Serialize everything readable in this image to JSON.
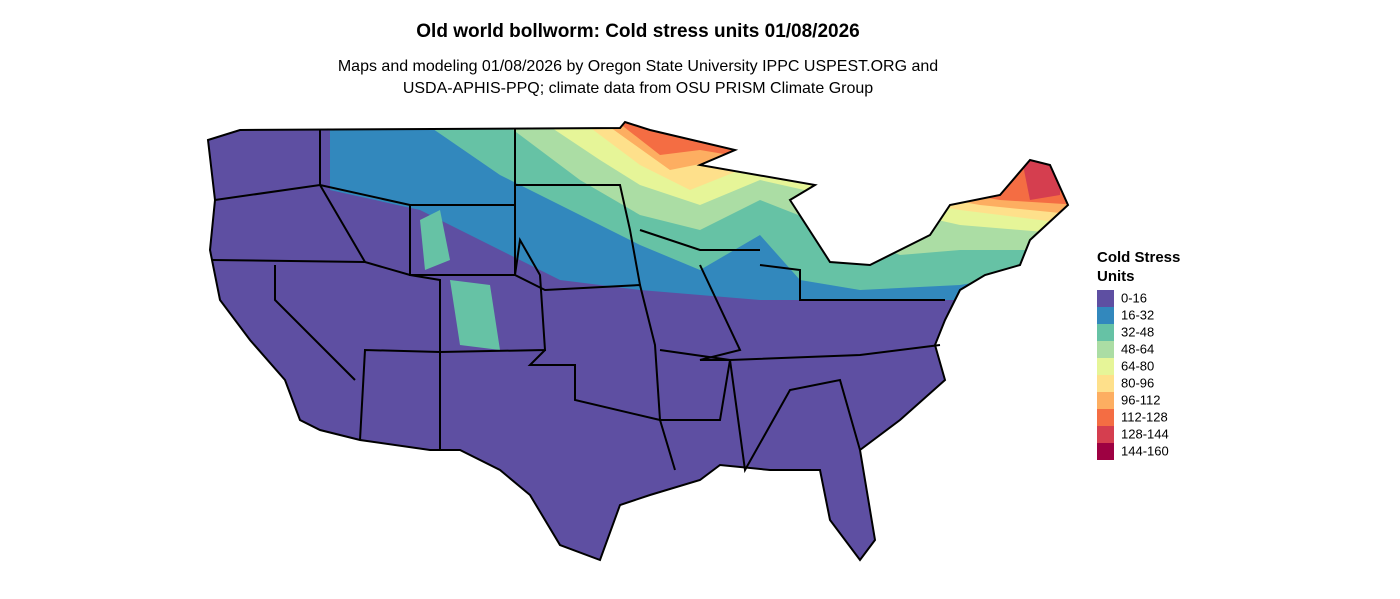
{
  "header": {
    "title": "Old world bollworm: Cold stress units 01/08/2026",
    "subtitle_lines": [
      "Maps and modeling 01/08/2026 by Oregon State University IPPC USPEST.ORG and",
      "USDA-APHIS-PPQ; climate data from OSU PRISM Climate Group"
    ]
  },
  "legend": {
    "title_lines": [
      "Cold Stress",
      "Units"
    ],
    "items": [
      {
        "label": "0-16",
        "color": "#5E4FA2"
      },
      {
        "label": "16-32",
        "color": "#3288BD"
      },
      {
        "label": "32-48",
        "color": "#66C2A5"
      },
      {
        "label": "48-64",
        "color": "#ABDDA4"
      },
      {
        "label": "64-80",
        "color": "#E6F598"
      },
      {
        "label": "80-96",
        "color": "#FEE08B"
      },
      {
        "label": "96-112",
        "color": "#FDAE61"
      },
      {
        "label": "112-128",
        "color": "#F46D43"
      },
      {
        "label": "128-144",
        "color": "#D53E4F"
      },
      {
        "label": "144-160",
        "color": "#9E0142"
      }
    ]
  }
}
